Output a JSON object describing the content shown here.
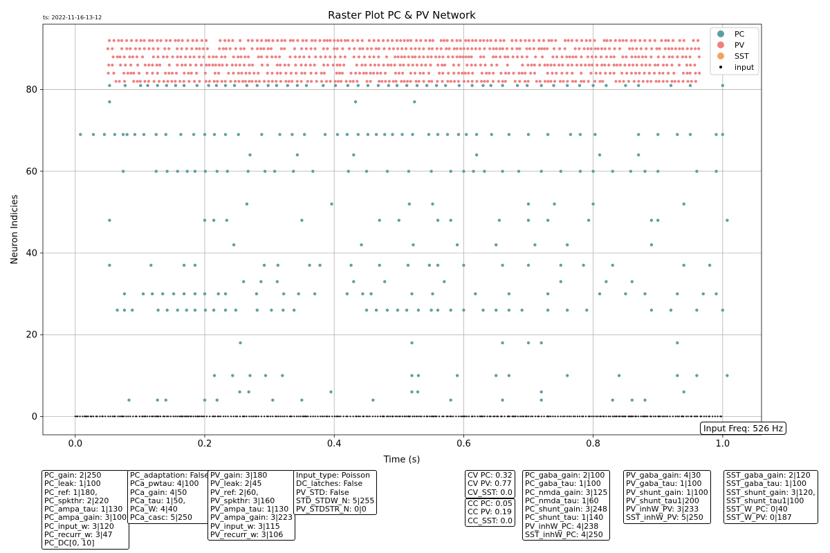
{
  "chart_data": {
    "type": "scatter",
    "title": "Raster Plot PC & PV Network",
    "xlabel": "Time (s)",
    "ylabel": "Neuron Indicies",
    "xlim": [
      -0.05,
      1.06
    ],
    "ylim": [
      -4.5,
      96
    ],
    "xticks": [
      0.0,
      0.2,
      0.4,
      0.6,
      0.8,
      1.0
    ],
    "xtick_labels": [
      "0.0",
      "0.2",
      "0.4",
      "0.6",
      "0.8",
      "1.0"
    ],
    "yticks": [
      0,
      20,
      40,
      60,
      80
    ],
    "ytick_labels": [
      "0",
      "20",
      "40",
      "60",
      "80"
    ],
    "grid": true,
    "legend_position": "top-right",
    "timestamp": "ts: 2022-11-16-13-12",
    "input_freq": "Input Freq: 526 Hz",
    "legend": [
      {
        "name": "PC",
        "color": "#5f9ea0"
      },
      {
        "name": "PV",
        "color": "#f08080"
      },
      {
        "name": "SST",
        "color": "#f4a460"
      },
      {
        "name": "input",
        "color": "#000000"
      }
    ],
    "series": [
      {
        "name": "PC",
        "color": "#5f9ea0",
        "rows": [
          {
            "neuron": 81,
            "times": [
              0.053,
              0.077,
              0.101,
              0.112,
              0.127,
              0.141,
              0.155,
              0.168,
              0.188,
              0.206,
              0.218,
              0.232,
              0.246,
              0.265,
              0.281,
              0.298,
              0.311,
              0.328,
              0.343,
              0.357,
              0.383,
              0.402,
              0.421,
              0.437,
              0.452,
              0.468,
              0.484,
              0.497,
              0.512,
              0.528,
              0.543,
              0.558,
              0.572,
              0.593,
              0.613,
              0.63,
              0.642,
              0.66,
              0.683,
              0.698,
              0.72,
              0.739,
              0.76,
              0.779,
              0.8,
              0.82,
              0.85,
              0.87,
              0.92,
              0.95,
              1.0
            ]
          },
          {
            "neuron": 69,
            "times": [
              0.008,
              0.028,
              0.045,
              0.061,
              0.074,
              0.08,
              0.092,
              0.106,
              0.125,
              0.14,
              0.163,
              0.183,
              0.2,
              0.215,
              0.232,
              0.252,
              0.288,
              0.316,
              0.335,
              0.354,
              0.386,
              0.405,
              0.42,
              0.437,
              0.452,
              0.465,
              0.478,
              0.49,
              0.505,
              0.521,
              0.546,
              0.56,
              0.575,
              0.592,
              0.604,
              0.62,
              0.643,
              0.67,
              0.7,
              0.73,
              0.765,
              0.78,
              0.803,
              0.87,
              0.9,
              0.93,
              0.95,
              0.99,
              1.0
            ]
          },
          {
            "neuron": 60,
            "times": [
              0.074,
              0.125,
              0.142,
              0.158,
              0.173,
              0.185,
              0.201,
              0.219,
              0.235,
              0.267,
              0.293,
              0.308,
              0.337,
              0.367,
              0.422,
              0.45,
              0.482,
              0.515,
              0.55,
              0.58,
              0.6,
              0.615,
              0.632,
              0.66,
              0.685,
              0.72,
              0.75,
              0.78,
              0.8,
              0.83,
              0.858,
              0.88,
              0.9,
              0.96,
              0.99
            ]
          },
          {
            "neuron": 48,
            "times": [
              0.053,
              0.2,
              0.214,
              0.234,
              0.35,
              0.47,
              0.5,
              0.56,
              0.58,
              0.655,
              0.7,
              0.73,
              0.793,
              0.89,
              0.9,
              1.007
            ]
          },
          {
            "neuron": 37,
            "times": [
              0.053,
              0.117,
              0.168,
              0.185,
              0.292,
              0.313,
              0.362,
              0.378,
              0.426,
              0.47,
              0.514,
              0.547,
              0.56,
              0.6,
              0.66,
              0.7,
              0.75,
              0.785,
              0.83,
              0.94,
              0.98
            ]
          },
          {
            "neuron": 30,
            "times": [
              0.076,
              0.105,
              0.119,
              0.135,
              0.152,
              0.168,
              0.185,
              0.2,
              0.221,
              0.232,
              0.28,
              0.322,
              0.345,
              0.37,
              0.42,
              0.444,
              0.457,
              0.52,
              0.552,
              0.618,
              0.67,
              0.73,
              0.81,
              0.85,
              0.88,
              0.93,
              0.97,
              0.99
            ]
          },
          {
            "neuron": 26,
            "times": [
              0.065,
              0.076,
              0.088,
              0.128,
              0.142,
              0.158,
              0.172,
              0.185,
              0.201,
              0.214,
              0.232,
              0.248,
              0.281,
              0.303,
              0.321,
              0.338,
              0.45,
              0.465,
              0.482,
              0.498,
              0.512,
              0.53,
              0.55,
              0.56,
              0.58,
              0.6,
              0.63,
              0.65,
              0.67,
              0.69,
              0.73,
              0.76,
              0.79,
              0.89,
              0.92,
              0.96,
              1.0
            ]
          },
          {
            "neuron": 10,
            "times": [
              0.215,
              0.243,
              0.27,
              0.294,
              0.32,
              0.52,
              0.53,
              0.59,
              0.65,
              0.67,
              0.76,
              0.84,
              0.93,
              0.96,
              1.007
            ]
          },
          {
            "neuron": 4,
            "times": [
              0.083,
              0.127,
              0.14,
              0.2,
              0.219,
              0.305,
              0.35,
              0.46,
              0.58,
              0.66,
              0.72,
              0.83,
              0.86,
              0.88
            ]
          },
          {
            "neuron": 6,
            "times": [
              0.254,
              0.268,
              0.395,
              0.52,
              0.529,
              0.72,
              0.94
            ]
          },
          {
            "neuron": 64,
            "times": [
              0.27,
              0.343,
              0.43,
              0.62,
              0.81,
              0.87
            ]
          },
          {
            "neuron": 52,
            "times": [
              0.265,
              0.396,
              0.516,
              0.552,
              0.7,
              0.74,
              0.8,
              0.94
            ]
          },
          {
            "neuron": 42,
            "times": [
              0.245,
              0.442,
              0.522,
              0.59,
              0.65,
              0.71,
              0.76,
              0.89
            ]
          },
          {
            "neuron": 77,
            "times": [
              0.053,
              0.433,
              0.524
            ]
          },
          {
            "neuron": 18,
            "times": [
              0.255,
              0.52,
              0.66,
              0.7,
              0.72,
              0.93
            ]
          },
          {
            "neuron": 33,
            "times": [
              0.26,
              0.287,
              0.312,
              0.43,
              0.478,
              0.57,
              0.75,
              0.82,
              0.86
            ]
          }
        ]
      },
      {
        "name": "PV",
        "color": "#f08080",
        "t_start": 0.05,
        "t_end": 0.965,
        "neurons": [
          92,
          90,
          88,
          86,
          84,
          82
        ]
      },
      {
        "name": "input",
        "color": "#000000",
        "neuron": 0,
        "t_start": 0.0,
        "t_end": 1.0
      }
    ]
  },
  "param_boxes": [
    {
      "lines": [
        "PC_gain: 2|250",
        "PC_leak: 1|100",
        "PC_ref: 1|180,",
        "PC_spkthr: 2|220",
        "PC_ampa_tau: 1|130",
        "PC_ampa_gain: 3|100",
        "PC_input_w: 3|120",
        "PC_recurr_w: 3|47",
        "PC_DC[0, 10]"
      ]
    },
    {
      "lines": [
        "PC_adaptation: False",
        "PCa_pwtau: 4|100",
        "PCa_gain: 4|50",
        "PCa_tau: 1|50,",
        "PCa_W: 4|40",
        "PCa_casc: 5|250"
      ]
    },
    {
      "lines": [
        "PV_gain: 3|180",
        "PV_leak: 2|45",
        "PV_ref: 2|60,",
        "PV_spkthr: 3|160",
        "PV_ampa_tau: 1|130",
        "PV_ampa_gain: 3|223",
        "PV_input_w: 3|115",
        "PV_recurr_w: 3|106"
      ]
    },
    {
      "lines": [
        "Input_type: Poisson",
        "DC_latches: False",
        "PV_STD: False",
        "STD_STDW_N: 5|255",
        "PV_STDSTR_N: 0|0"
      ]
    },
    {
      "lines": [
        "CV PC: 0.32",
        "CV PV: 0.77",
        "CV_SST: 0.0"
      ]
    },
    {
      "lines": [
        "CC PC: 0.05",
        "CC PV: 0.19",
        "CC_SST: 0.0"
      ]
    },
    {
      "lines": [
        "PC_gaba_gain: 2|100",
        "PC_gaba_tau: 1|100",
        "PC_nmda_gain: 3|125",
        "PC_nmda_tau: 1|60",
        "PC_shunt_gain: 3|248",
        "PC_shunt_tau: 1|140",
        "PV_inhW_PC: 4|238",
        "SST_inhW_PC: 4|250"
      ]
    },
    {
      "lines": [
        "PV_gaba_gain: 4|30",
        "PV_gaba_tau: 1|100",
        "PV_shunt_gain: 1|100",
        "PV_shunt_tau1|200",
        "PV_inhW_PV: 3|233",
        "SST_inhW_PV: 5|250"
      ]
    },
    {
      "lines": [
        "SST_gaba_gain: 2|120",
        "SST_gaba_tau: 1|100",
        "SST_shunt_gain: 3|120,",
        "SST_shunt_tau1|100",
        "SST_W_PC: 0|40",
        "SST_W_PV: 0|187"
      ]
    }
  ]
}
